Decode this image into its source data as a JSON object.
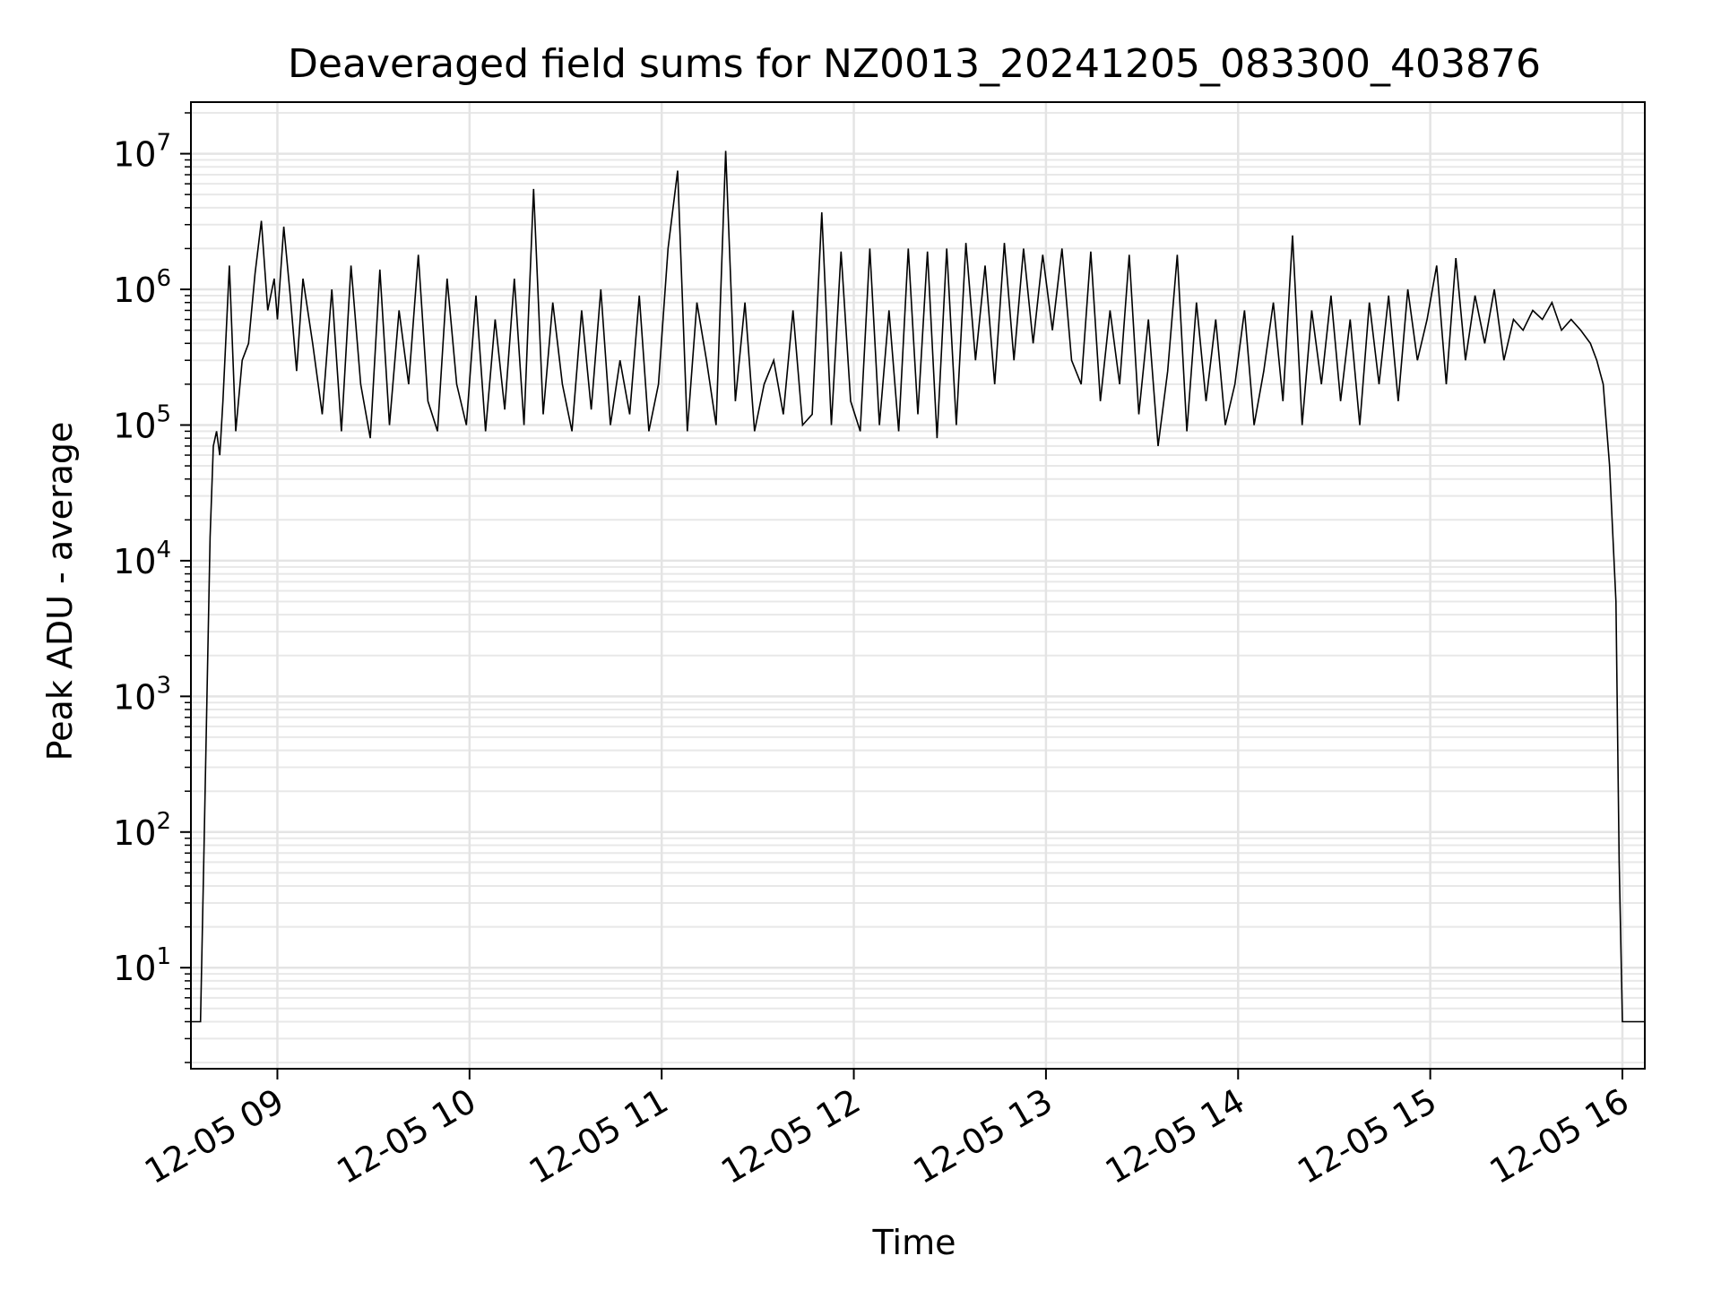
{
  "chart_data": {
    "type": "line",
    "title": "Deaveraged field sums for NZ0013_20241205_083300_403876",
    "xlabel": "Time",
    "ylabel": "Peak ADU - average",
    "y_scale": "log",
    "ylim": [
      1.8,
      24000000
    ],
    "xlim": [
      "2024-12-05 08:33",
      "2024-12-05 16:07"
    ],
    "grid": true,
    "x_ticks": [
      {
        "value": "2024-12-05 09:00",
        "label": "12-05 09"
      },
      {
        "value": "2024-12-05 10:00",
        "label": "12-05 10"
      },
      {
        "value": "2024-12-05 11:00",
        "label": "12-05 11"
      },
      {
        "value": "2024-12-05 12:00",
        "label": "12-05 12"
      },
      {
        "value": "2024-12-05 13:00",
        "label": "12-05 13"
      },
      {
        "value": "2024-12-05 14:00",
        "label": "12-05 14"
      },
      {
        "value": "2024-12-05 15:00",
        "label": "12-05 15"
      },
      {
        "value": "2024-12-05 16:00",
        "label": "12-05 16"
      }
    ],
    "y_ticks": [
      {
        "value": 10,
        "base": "10",
        "exp": "1"
      },
      {
        "value": 100,
        "base": "10",
        "exp": "2"
      },
      {
        "value": 1000,
        "base": "10",
        "exp": "3"
      },
      {
        "value": 10000,
        "base": "10",
        "exp": "4"
      },
      {
        "value": 100000,
        "base": "10",
        "exp": "5"
      },
      {
        "value": 1000000,
        "base": "10",
        "exp": "6"
      },
      {
        "value": 10000000,
        "base": "10",
        "exp": "7"
      }
    ],
    "series": [
      {
        "color": "#000000",
        "x": [
          "2024-12-05 08:33",
          "2024-12-05 08:36",
          "2024-12-05 08:37",
          "2024-12-05 08:38",
          "2024-12-05 08:39",
          "2024-12-05 08:40",
          "2024-12-05 08:41",
          "2024-12-05 08:42",
          "2024-12-05 08:43",
          "2024-12-05 08:45",
          "2024-12-05 08:47",
          "2024-12-05 08:49",
          "2024-12-05 08:51",
          "2024-12-05 08:53",
          "2024-12-05 08:55",
          "2024-12-05 08:57",
          "2024-12-05 08:59",
          "2024-12-05 09:00",
          "2024-12-05 09:02",
          "2024-12-05 09:04",
          "2024-12-05 09:06",
          "2024-12-05 09:08",
          "2024-12-05 09:11",
          "2024-12-05 09:14",
          "2024-12-05 09:17",
          "2024-12-05 09:20",
          "2024-12-05 09:23",
          "2024-12-05 09:26",
          "2024-12-05 09:29",
          "2024-12-05 09:32",
          "2024-12-05 09:35",
          "2024-12-05 09:38",
          "2024-12-05 09:41",
          "2024-12-05 09:44",
          "2024-12-05 09:47",
          "2024-12-05 09:50",
          "2024-12-05 09:53",
          "2024-12-05 09:56",
          "2024-12-05 09:59",
          "2024-12-05 10:02",
          "2024-12-05 10:05",
          "2024-12-05 10:08",
          "2024-12-05 10:11",
          "2024-12-05 10:14",
          "2024-12-05 10:17",
          "2024-12-05 10:20",
          "2024-12-05 10:23",
          "2024-12-05 10:26",
          "2024-12-05 10:29",
          "2024-12-05 10:32",
          "2024-12-05 10:35",
          "2024-12-05 10:38",
          "2024-12-05 10:41",
          "2024-12-05 10:44",
          "2024-12-05 10:47",
          "2024-12-05 10:50",
          "2024-12-05 10:53",
          "2024-12-05 10:56",
          "2024-12-05 10:59",
          "2024-12-05 11:02",
          "2024-12-05 11:05",
          "2024-12-05 11:08",
          "2024-12-05 11:11",
          "2024-12-05 11:14",
          "2024-12-05 11:17",
          "2024-12-05 11:20",
          "2024-12-05 11:23",
          "2024-12-05 11:26",
          "2024-12-05 11:29",
          "2024-12-05 11:32",
          "2024-12-05 11:35",
          "2024-12-05 11:38",
          "2024-12-05 11:41",
          "2024-12-05 11:44",
          "2024-12-05 11:47",
          "2024-12-05 11:50",
          "2024-12-05 11:53",
          "2024-12-05 11:56",
          "2024-12-05 11:59",
          "2024-12-05 12:02",
          "2024-12-05 12:05",
          "2024-12-05 12:08",
          "2024-12-05 12:11",
          "2024-12-05 12:14",
          "2024-12-05 12:17",
          "2024-12-05 12:20",
          "2024-12-05 12:23",
          "2024-12-05 12:26",
          "2024-12-05 12:29",
          "2024-12-05 12:32",
          "2024-12-05 12:35",
          "2024-12-05 12:38",
          "2024-12-05 12:41",
          "2024-12-05 12:44",
          "2024-12-05 12:47",
          "2024-12-05 12:50",
          "2024-12-05 12:53",
          "2024-12-05 12:56",
          "2024-12-05 12:59",
          "2024-12-05 13:02",
          "2024-12-05 13:05",
          "2024-12-05 13:08",
          "2024-12-05 13:11",
          "2024-12-05 13:14",
          "2024-12-05 13:17",
          "2024-12-05 13:20",
          "2024-12-05 13:23",
          "2024-12-05 13:26",
          "2024-12-05 13:29",
          "2024-12-05 13:32",
          "2024-12-05 13:35",
          "2024-12-05 13:38",
          "2024-12-05 13:41",
          "2024-12-05 13:44",
          "2024-12-05 13:47",
          "2024-12-05 13:50",
          "2024-12-05 13:53",
          "2024-12-05 13:56",
          "2024-12-05 13:59",
          "2024-12-05 14:02",
          "2024-12-05 14:05",
          "2024-12-05 14:08",
          "2024-12-05 14:11",
          "2024-12-05 14:14",
          "2024-12-05 14:17",
          "2024-12-05 14:20",
          "2024-12-05 14:23",
          "2024-12-05 14:26",
          "2024-12-05 14:29",
          "2024-12-05 14:32",
          "2024-12-05 14:35",
          "2024-12-05 14:38",
          "2024-12-05 14:41",
          "2024-12-05 14:44",
          "2024-12-05 14:47",
          "2024-12-05 14:50",
          "2024-12-05 14:53",
          "2024-12-05 14:56",
          "2024-12-05 14:59",
          "2024-12-05 15:02",
          "2024-12-05 15:05",
          "2024-12-05 15:08",
          "2024-12-05 15:11",
          "2024-12-05 15:14",
          "2024-12-05 15:17",
          "2024-12-05 15:20",
          "2024-12-05 15:23",
          "2024-12-05 15:26",
          "2024-12-05 15:29",
          "2024-12-05 15:32",
          "2024-12-05 15:35",
          "2024-12-05 15:38",
          "2024-12-05 15:41",
          "2024-12-05 15:44",
          "2024-12-05 15:47",
          "2024-12-05 15:50",
          "2024-12-05 15:52",
          "2024-12-05 15:54",
          "2024-12-05 15:56",
          "2024-12-05 15:58",
          "2024-12-05 15:59",
          "2024-12-05 16:00",
          "2024-12-05 16:07"
        ],
        "y": [
          4,
          4,
          60,
          1000,
          15000,
          70000,
          90000,
          60000,
          150000,
          1500000,
          90000,
          300000,
          400000,
          1300000,
          3200000,
          700000,
          1200000,
          600000,
          2900000,
          900000,
          250000,
          1200000,
          400000,
          120000,
          1000000,
          90000,
          1500000,
          200000,
          80000,
          1400000,
          100000,
          700000,
          200000,
          1800000,
          150000,
          90000,
          1200000,
          200000,
          100000,
          900000,
          90000,
          600000,
          130000,
          1200000,
          100000,
          5500000,
          120000,
          800000,
          200000,
          90000,
          700000,
          130000,
          1000000,
          100000,
          300000,
          120000,
          900000,
          90000,
          200000,
          2000000,
          7500000,
          90000,
          800000,
          300000,
          100000,
          10500000,
          150000,
          800000,
          90000,
          200000,
          300000,
          120000,
          700000,
          100000,
          120000,
          3700000,
          100000,
          1900000,
          150000,
          90000,
          2000000,
          100000,
          700000,
          90000,
          2000000,
          120000,
          1900000,
          80000,
          2000000,
          100000,
          2200000,
          300000,
          1500000,
          200000,
          2200000,
          300000,
          2000000,
          400000,
          1800000,
          500000,
          2000000,
          300000,
          200000,
          1900000,
          150000,
          700000,
          200000,
          1800000,
          120000,
          600000,
          70000,
          250000,
          1800000,
          90000,
          800000,
          150000,
          600000,
          100000,
          200000,
          700000,
          100000,
          250000,
          800000,
          150000,
          2500000,
          100000,
          700000,
          200000,
          900000,
          150000,
          600000,
          100000,
          800000,
          200000,
          900000,
          150000,
          1000000,
          300000,
          600000,
          1500000,
          200000,
          1700000,
          300000,
          900000,
          400000,
          1000000,
          300000,
          600000,
          500000,
          700000,
          600000,
          800000,
          500000,
          600000,
          500000,
          400000,
          300000,
          200000,
          50000,
          5000,
          60,
          4,
          4
        ]
      }
    ]
  }
}
